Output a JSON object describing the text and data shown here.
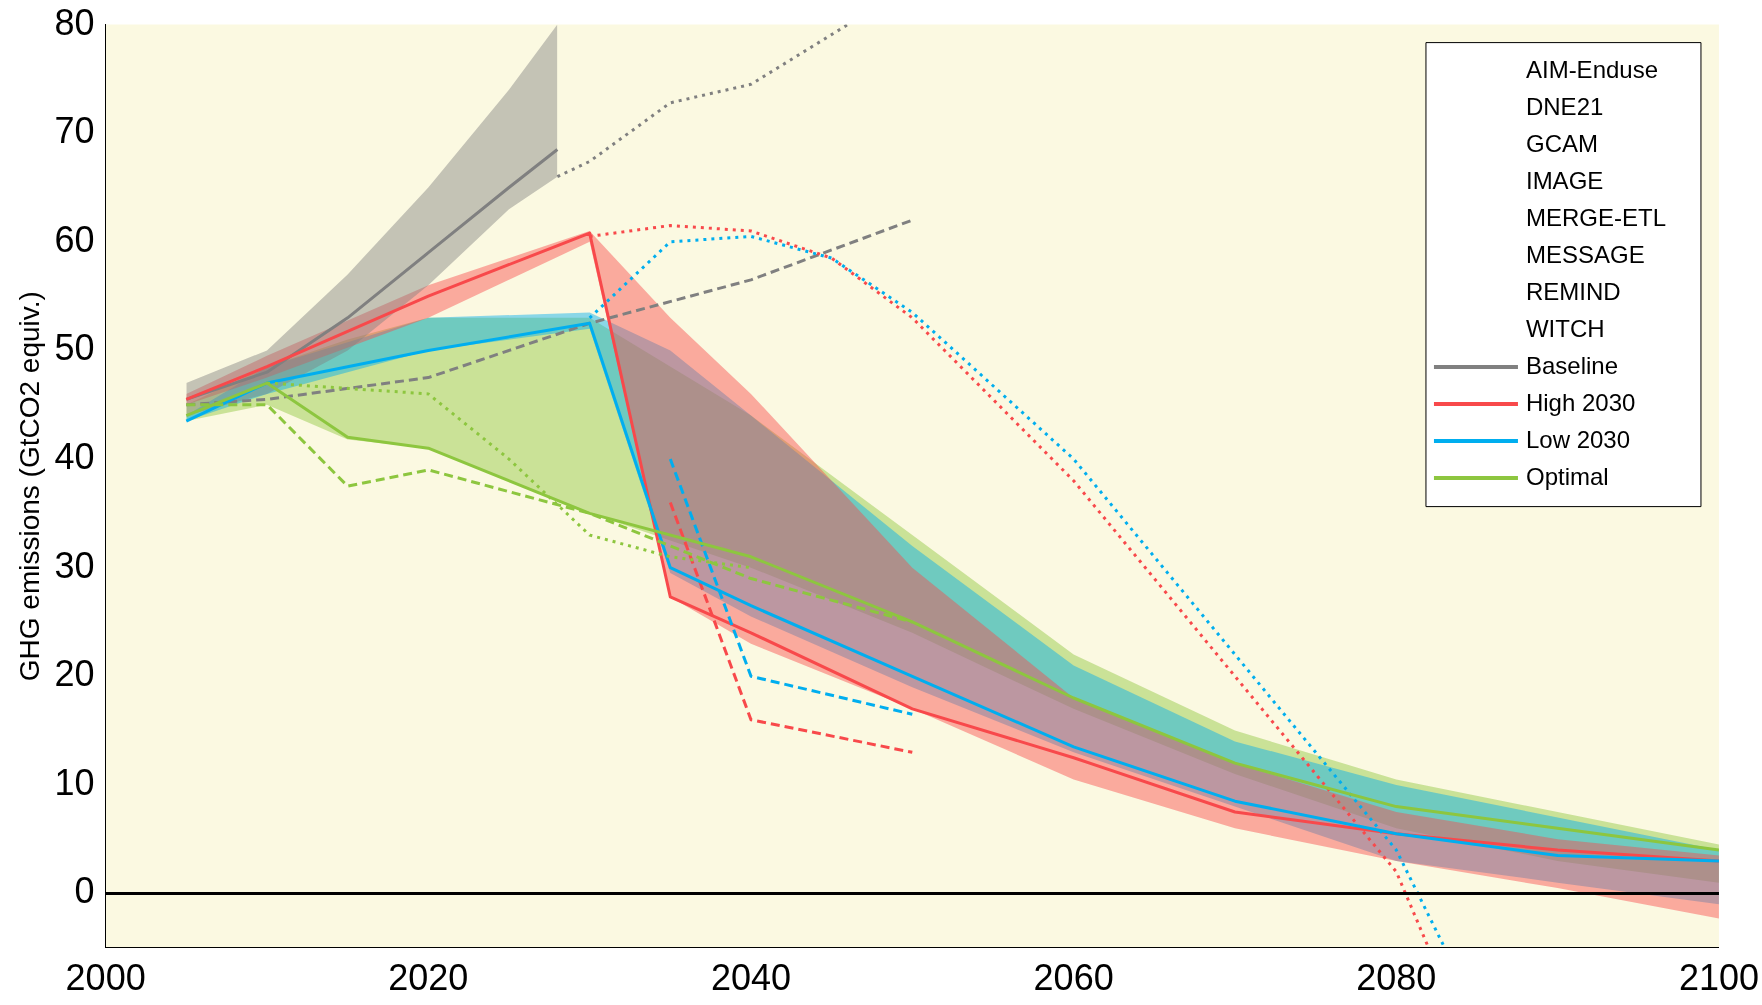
{
  "chart_data": {
    "type": "line",
    "ylabel": "GHG emissions (GtCO2 equiv.)",
    "xlim": [
      2000,
      2100
    ],
    "xticks": [
      2000,
      2020,
      2040,
      2060,
      2080,
      2100
    ],
    "ylim": [
      -5,
      80
    ],
    "yticks": [
      0,
      10,
      20,
      30,
      40,
      50,
      60,
      70,
      80
    ],
    "legend": "top right",
    "grid": false,
    "annotations": [
      "AIM-Enduse",
      "DNE21",
      "GCAM",
      "IMAGE",
      "MERGE-ETL",
      "MESSAGE",
      "REMIND",
      "WITCH"
    ],
    "ref_lines": [
      {
        "axis": "y",
        "value": 0,
        "color": "#000000"
      }
    ],
    "series": [
      {
        "name": "Baseline",
        "color": "#808080",
        "line_style": "solid",
        "x": [
          2005,
          2010,
          2015,
          2020,
          2025,
          2028
        ],
        "values": [
          45.5,
          48,
          53,
          59,
          65,
          68.5
        ],
        "lower": [
          44,
          46,
          50,
          56,
          63,
          66
        ],
        "upper": [
          47,
          50,
          57,
          65,
          74,
          80
        ]
      },
      {
        "color": "#808080",
        "line_style": "dotted",
        "x": [
          2028,
          2030,
          2035,
          2040,
          2046
        ],
        "values": [
          66,
          67.4,
          72.8,
          74.5,
          80
        ]
      },
      {
        "color": "#808080",
        "line_style": "dashed",
        "x": [
          2005,
          2010,
          2020,
          2030,
          2040,
          2050
        ],
        "values": [
          45,
          45.5,
          47.5,
          52.5,
          56.5,
          62
        ]
      },
      {
        "name": "High 2030",
        "color": "#f8494b",
        "line_style": "solid",
        "x": [
          2005,
          2010,
          2020,
          2030,
          2035,
          2040,
          2050,
          2060,
          2070,
          2080,
          2090,
          2100
        ],
        "values": [
          45.5,
          48.5,
          55,
          60.8,
          27.3,
          24,
          17,
          12.5,
          7.5,
          5.5,
          4,
          3
        ],
        "lower": [
          45,
          47.5,
          53,
          60,
          27.3,
          23,
          17,
          10.5,
          6,
          3,
          0.5,
          -2.3
        ],
        "upper": [
          46,
          49.5,
          56,
          61,
          53,
          46,
          30,
          18,
          12,
          7.5,
          5,
          3.5
        ]
      },
      {
        "color": "#f8494b",
        "line_style": "dotted",
        "x": [
          2030,
          2035,
          2040,
          2045,
          2050,
          2060,
          2070,
          2080,
          2082
        ],
        "values": [
          60.5,
          61.5,
          61,
          58.5,
          53,
          38,
          20,
          2,
          -5
        ]
      },
      {
        "color": "#f8494b",
        "line_style": "dashed",
        "x": [
          2035,
          2040,
          2050
        ],
        "values": [
          36,
          16,
          13
        ]
      },
      {
        "name": "Low 2030",
        "color": "#00aeef",
        "line_style": "solid",
        "x": [
          2005,
          2010,
          2020,
          2030,
          2035,
          2040,
          2050,
          2060,
          2070,
          2080,
          2090,
          2100
        ],
        "values": [
          43.5,
          47,
          50,
          52.5,
          30,
          26.5,
          20,
          13.5,
          8.5,
          5.5,
          3.5,
          3
        ],
        "lower": [
          43.5,
          46,
          50,
          52,
          29.5,
          25.5,
          19,
          13,
          8,
          3,
          1,
          -1
        ],
        "upper": [
          44,
          48.5,
          53,
          53.5,
          50,
          44,
          32,
          21,
          14,
          10,
          7,
          4
        ]
      },
      {
        "color": "#00aeef",
        "line_style": "dotted",
        "x": [
          2030,
          2035,
          2040,
          2045,
          2050,
          2060,
          2070,
          2080,
          2083
        ],
        "values": [
          53,
          60,
          60.5,
          58.5,
          53.5,
          40,
          22,
          4,
          -5
        ]
      },
      {
        "color": "#00aeef",
        "line_style": "dashed",
        "x": [
          2035,
          2040,
          2050
        ],
        "values": [
          40,
          20,
          16.5
        ]
      },
      {
        "name": "Optimal",
        "color": "#8dc63f",
        "line_style": "solid",
        "x": [
          2005,
          2010,
          2015,
          2020,
          2030,
          2040,
          2050,
          2060,
          2070,
          2080,
          2090,
          2100
        ],
        "values": [
          44,
          47,
          42,
          41,
          35,
          31,
          25,
          18,
          12,
          8,
          6,
          4
        ],
        "lower": [
          43.5,
          45,
          41.8,
          41,
          35,
          30,
          24,
          17,
          11,
          6,
          3,
          1
        ],
        "upper": [
          45,
          48.5,
          51,
          53,
          53,
          44,
          33,
          22,
          15,
          10.5,
          7.5,
          4.5
        ]
      },
      {
        "color": "#8dc63f",
        "line_style": "dashed",
        "x": [
          2005,
          2010,
          2015,
          2020,
          2030,
          2040,
          2050
        ],
        "values": [
          45,
          45,
          37.5,
          39,
          35,
          29,
          25
        ]
      },
      {
        "color": "#8dc63f",
        "line_style": "dotted",
        "x": [
          2010,
          2020,
          2025,
          2030,
          2035,
          2040
        ],
        "values": [
          47,
          46,
          40,
          33,
          31,
          30
        ]
      }
    ]
  }
}
